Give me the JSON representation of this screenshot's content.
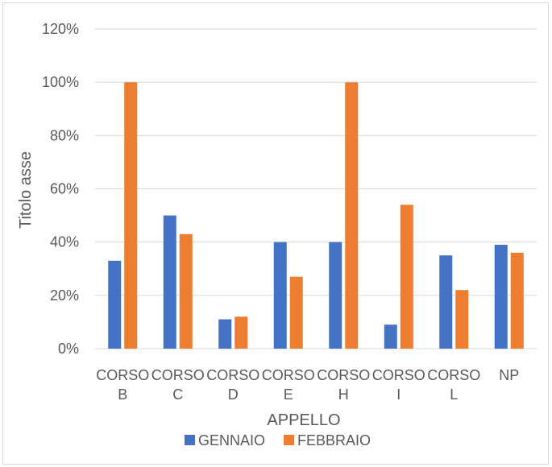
{
  "chart_data": {
    "type": "bar",
    "title": "",
    "xlabel": "APPELLO",
    "ylabel": "Titolo asse",
    "ylim": [
      0,
      1.2
    ],
    "yticks": [
      "0%",
      "20%",
      "40%",
      "60%",
      "80%",
      "100%",
      "120%"
    ],
    "grid": true,
    "legend_position": "bottom",
    "categories": [
      [
        "CORSO",
        "B"
      ],
      [
        "CORSO",
        "C"
      ],
      [
        "CORSO",
        "D"
      ],
      [
        "CORSO",
        "E"
      ],
      [
        "CORSO",
        "H"
      ],
      [
        "CORSO",
        "I"
      ],
      [
        "CORSO",
        "L"
      ],
      [
        "NP"
      ]
    ],
    "series": [
      {
        "name": "GENNAIO",
        "color": "#4472c4",
        "values": [
          0.33,
          0.5,
          0.11,
          0.4,
          0.4,
          0.09,
          0.35,
          0.39
        ]
      },
      {
        "name": "FEBBRAIO",
        "color": "#ed7d31",
        "values": [
          1.0,
          0.43,
          0.12,
          0.27,
          1.0,
          0.54,
          0.22,
          0.36
        ]
      }
    ]
  }
}
